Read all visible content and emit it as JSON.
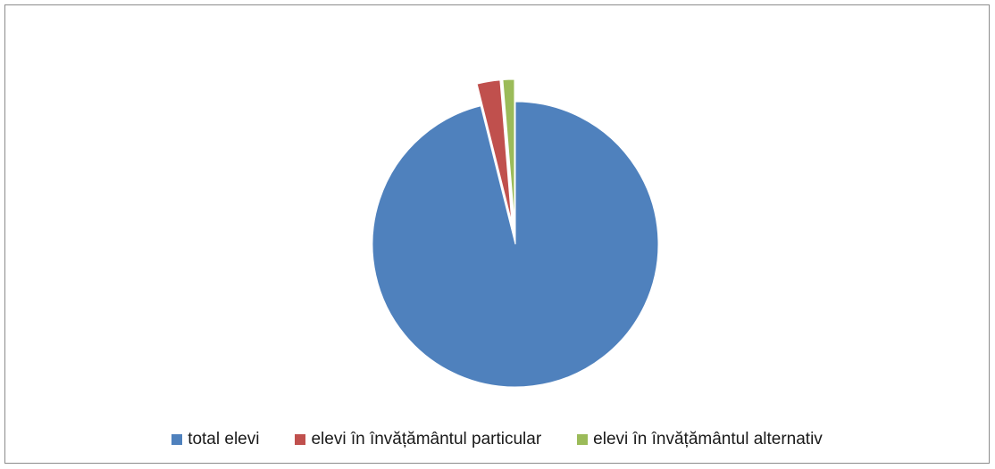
{
  "chart_data": {
    "type": "pie",
    "title": "",
    "categories": [
      "total elevi",
      "elevi în învățământul particular",
      "elevi în învățământul alternativ"
    ],
    "values": [
      96.1,
      2.6,
      1.3
    ],
    "colors": [
      "#4f81bd",
      "#c0504d",
      "#9bbb59"
    ],
    "exploded": [
      false,
      true,
      true
    ],
    "legend_position": "bottom",
    "start_angle_deg": 0,
    "direction": "clockwise"
  },
  "legend": {
    "items": [
      {
        "label": "total elevi",
        "color": "#4f81bd"
      },
      {
        "label": "elevi în învățământul particular",
        "color": "#c0504d"
      },
      {
        "label": "elevi în învățământul alternativ",
        "color": "#9bbb59"
      }
    ]
  }
}
